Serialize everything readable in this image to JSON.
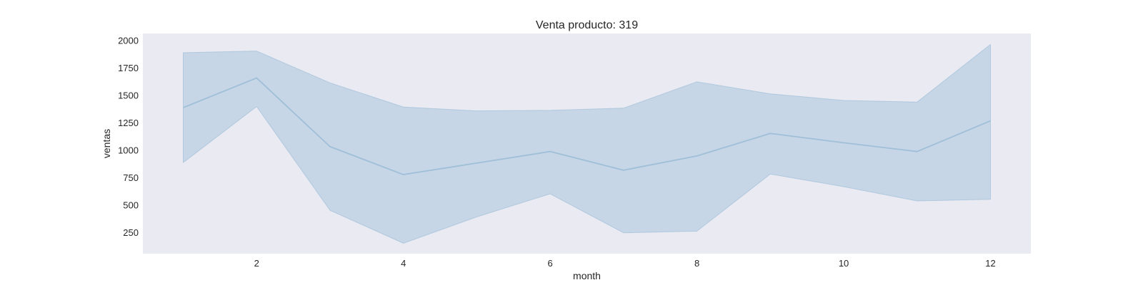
{
  "chart_data": {
    "type": "line",
    "title": "Venta producto: 319",
    "xlabel": "month",
    "ylabel": "ventas",
    "x": [
      1,
      2,
      3,
      4,
      5,
      6,
      7,
      8,
      9,
      10,
      11,
      12
    ],
    "xlim": [
      0.45,
      12.55
    ],
    "ylim": [
      55,
      2060
    ],
    "xticks": [
      2,
      4,
      6,
      8,
      10,
      12
    ],
    "yticks": [
      250,
      500,
      750,
      1000,
      1250,
      1500,
      1750,
      2000
    ],
    "grid": false,
    "series": [
      {
        "values": [
          1385,
          1655,
          1030,
          775,
          880,
          985,
          815,
          945,
          1150,
          1065,
          985,
          1265
        ],
        "lower": [
          885,
          1395,
          450,
          150,
          390,
          600,
          245,
          260,
          780,
          665,
          535,
          550
        ],
        "upper": [
          1885,
          1900,
          1610,
          1390,
          1355,
          1360,
          1380,
          1620,
          1510,
          1450,
          1435,
          1960
        ]
      }
    ],
    "colors": {
      "line": "#9fbfd8",
      "band": "#a9c4dc",
      "plot_background": "#eaeaf2",
      "text": "#262626"
    }
  }
}
